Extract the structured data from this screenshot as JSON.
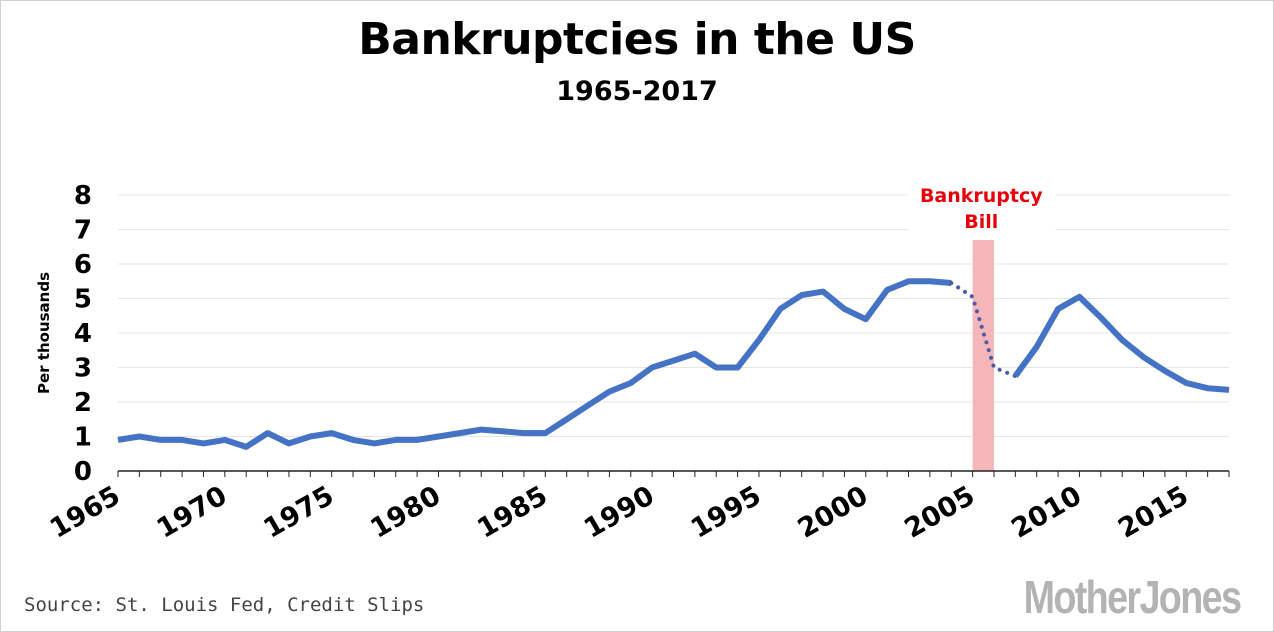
{
  "chart_data": {
    "type": "line",
    "title": "Bankruptcies in the US",
    "subtitle": "1965-2017",
    "xlabel": "",
    "ylabel": "Per thousands",
    "xlim": [
      1965,
      2017
    ],
    "ylim": [
      0,
      8
    ],
    "yticks": [
      0,
      1,
      2,
      3,
      4,
      5,
      6,
      7,
      8
    ],
    "xticks": [
      1965,
      1970,
      1975,
      1980,
      1985,
      1990,
      1995,
      2000,
      2005,
      2010,
      2015
    ],
    "grid": true,
    "legend": "none",
    "series_solid_1": {
      "x": [
        1965,
        1966,
        1967,
        1968,
        1969,
        1970,
        1971,
        1972,
        1973,
        1974,
        1975,
        1976,
        1977,
        1978,
        1979,
        1980,
        1981,
        1982,
        1983,
        1984,
        1985,
        1986,
        1987,
        1988,
        1989,
        1990,
        1991,
        1992,
        1993,
        1994,
        1995,
        1996,
        1997,
        1998,
        1999,
        2000,
        2001,
        2002,
        2003,
        2004
      ],
      "y": [
        0.9,
        1.0,
        0.9,
        0.9,
        0.8,
        0.9,
        0.7,
        1.1,
        0.8,
        1.0,
        1.1,
        0.9,
        0.8,
        0.9,
        0.9,
        1.0,
        1.1,
        1.2,
        1.15,
        1.1,
        1.1,
        1.5,
        1.9,
        2.3,
        2.55,
        3.0,
        3.2,
        3.4,
        3.0,
        3.0,
        3.8,
        4.7,
        5.1,
        5.2,
        4.7,
        4.4,
        5.25,
        5.5,
        5.5,
        5.45
      ]
    },
    "series_dotted": {
      "x": [
        2004,
        2005,
        2006,
        2007
      ],
      "y": [
        5.45,
        5.05,
        3.0,
        2.75
      ]
    },
    "series_solid_2": {
      "x": [
        2007,
        2008,
        2009,
        2010,
        2011,
        2012,
        2013,
        2014,
        2015,
        2016,
        2017
      ],
      "y": [
        2.75,
        3.6,
        4.7,
        5.05,
        4.45,
        3.8,
        3.3,
        2.9,
        2.55,
        2.4,
        2.35
      ]
    },
    "annotation": {
      "label_line1": "Bankruptcy",
      "label_line2": "Bill",
      "x_range": [
        2005,
        2006
      ]
    },
    "colors": {
      "line": "#4472c4",
      "dotted": "#4e5aa5",
      "highlight": "#f4b6b8",
      "annotation_text": "#e8000b",
      "grid": "#e6e6e6"
    }
  },
  "footer": {
    "source": "Source: St. Louis Fed, Credit Slips",
    "logo_part1": "Mother",
    "logo_part2": "Jones",
    "logo_color": "#b3b3b3"
  }
}
